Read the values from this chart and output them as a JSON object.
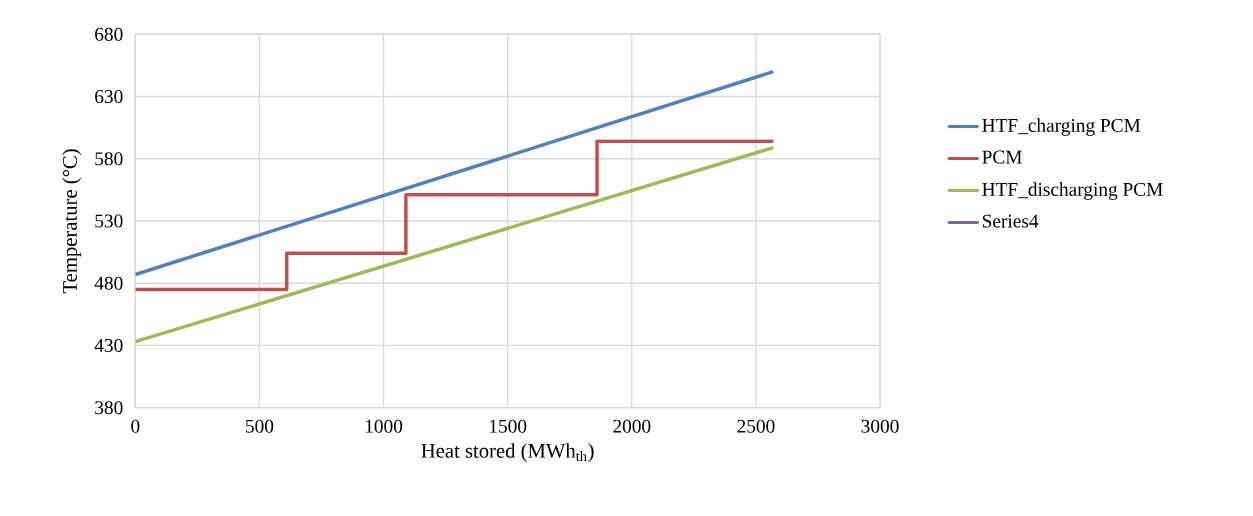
{
  "chart_data": {
    "type": "line",
    "xlabel": "Heat stored (MWh$_{th}$)",
    "ylabel": "Temperature (°C)",
    "xlim": [
      0,
      3000
    ],
    "xticks": [
      0,
      500,
      1000,
      1500,
      2000,
      2500,
      3000
    ],
    "ylim": [
      380,
      680
    ],
    "yticks": [
      380,
      430,
      480,
      530,
      580,
      630,
      680
    ],
    "grid": true,
    "legend": "right",
    "marker": "none",
    "line_style": "solid",
    "series": [
      {
        "name": "HTF_charging PCM",
        "color": "#4f81bd",
        "x": [
          0,
          2570
        ],
        "values": [
          487,
          650
        ]
      },
      {
        "name": "PCM",
        "type": "step",
        "color": "#c0504d",
        "x": [
          0,
          610,
          1090,
          1860,
          2570
        ],
        "values": [
          475,
          504,
          551,
          594,
          594
        ]
      },
      {
        "name": "HTF_discharging PCM",
        "color": "#9bbb59",
        "x": [
          0,
          2570
        ],
        "values": [
          433,
          589
        ]
      },
      {
        "name": "Series4",
        "color": "#8064a2"
      }
    ]
  }
}
